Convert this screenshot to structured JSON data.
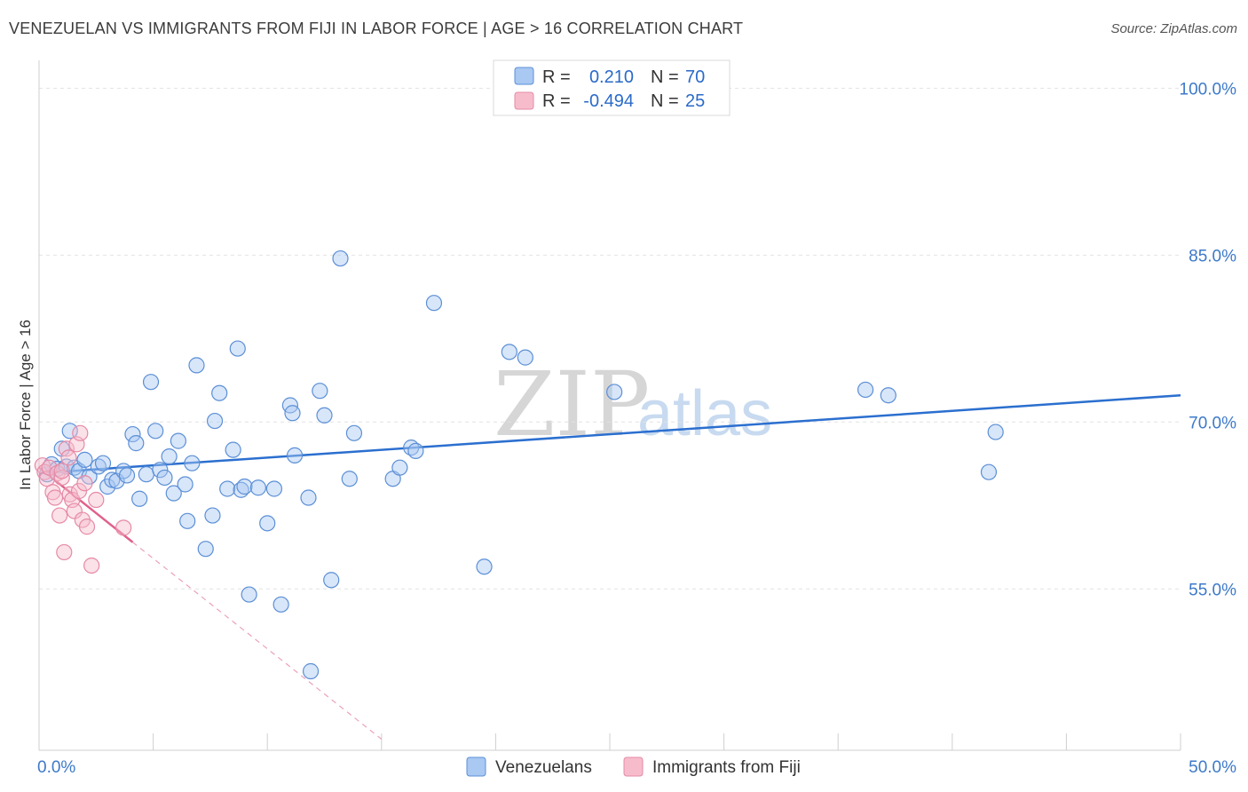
{
  "header": {
    "title": "VENEZUELAN VS IMMIGRANTS FROM FIJI IN LABOR FORCE | AGE > 16 CORRELATION CHART",
    "source": "Source: ZipAtlas.com"
  },
  "watermark": {
    "zip": "ZIP",
    "atlas": "atlas"
  },
  "legend": {
    "rows": [
      {
        "r_label": "R =",
        "r_value": "0.210",
        "n_label": "N =",
        "n_value": "70",
        "color": "#a9c8f2"
      },
      {
        "r_label": "R =",
        "r_value": "-0.494",
        "n_label": "N =",
        "n_value": "25",
        "color": "#f7bccc"
      }
    ]
  },
  "colors": {
    "blue_fill": "#a9c8f2",
    "blue_stroke": "#5b8fd6",
    "blue_line": "#2b6fcf",
    "pink_fill": "#f7bccc",
    "pink_stroke": "#e58aa6",
    "pink_line": "#e0608a"
  },
  "chart_data": {
    "type": "scatter",
    "title": "VENEZUELAN VS IMMIGRANTS FROM FIJI IN LABOR FORCE | AGE > 16 CORRELATION CHART",
    "xlabel": "",
    "ylabel": "In Labor Force | Age > 16",
    "xlim": [
      0,
      50
    ],
    "ylim": [
      40.5,
      102.5
    ],
    "x_tick_labels": [
      "0.0%",
      "50.0%"
    ],
    "y_ticks": [
      55,
      70,
      85,
      100
    ],
    "y_tick_labels": [
      "55.0%",
      "70.0%",
      "85.0%",
      "100.0%"
    ],
    "grid": true,
    "legend_position": "bottom",
    "series": [
      {
        "name": "Venezuelans",
        "color": "#a9c8f2",
        "trend": {
          "x": [
            0,
            50
          ],
          "y": [
            65.4,
            72.4
          ],
          "style": "solid"
        },
        "points": [
          [
            0.35,
            65.3
          ],
          [
            0.55,
            66.2
          ],
          [
            0.8,
            65.8
          ],
          [
            1.0,
            67.6
          ],
          [
            1.2,
            66.0
          ],
          [
            1.35,
            69.2
          ],
          [
            1.55,
            65.9
          ],
          [
            1.75,
            65.6
          ],
          [
            2.0,
            66.6
          ],
          [
            2.2,
            65.1
          ],
          [
            2.6,
            66.0
          ],
          [
            2.8,
            66.3
          ],
          [
            3.0,
            64.2
          ],
          [
            3.2,
            64.8
          ],
          [
            3.4,
            64.7
          ],
          [
            3.7,
            65.6
          ],
          [
            3.85,
            65.2
          ],
          [
            4.1,
            68.9
          ],
          [
            4.25,
            68.1
          ],
          [
            4.4,
            63.1
          ],
          [
            4.7,
            65.3
          ],
          [
            4.9,
            73.6
          ],
          [
            5.1,
            69.2
          ],
          [
            5.3,
            65.7
          ],
          [
            5.5,
            65.0
          ],
          [
            5.7,
            66.9
          ],
          [
            5.9,
            63.6
          ],
          [
            6.1,
            68.3
          ],
          [
            6.4,
            64.4
          ],
          [
            6.5,
            61.1
          ],
          [
            6.7,
            66.3
          ],
          [
            6.9,
            75.1
          ],
          [
            7.3,
            58.6
          ],
          [
            7.6,
            61.6
          ],
          [
            7.7,
            70.1
          ],
          [
            7.9,
            72.6
          ],
          [
            8.25,
            64.0
          ],
          [
            8.5,
            67.5
          ],
          [
            8.7,
            76.6
          ],
          [
            8.85,
            63.9
          ],
          [
            9.0,
            64.2
          ],
          [
            9.2,
            54.5
          ],
          [
            9.6,
            64.1
          ],
          [
            10.0,
            60.9
          ],
          [
            10.3,
            64.0
          ],
          [
            10.6,
            53.6
          ],
          [
            11.0,
            71.5
          ],
          [
            11.1,
            70.8
          ],
          [
            11.2,
            67.0
          ],
          [
            11.8,
            63.2
          ],
          [
            11.9,
            47.6
          ],
          [
            12.3,
            72.8
          ],
          [
            12.5,
            70.6
          ],
          [
            12.8,
            55.8
          ],
          [
            13.2,
            84.7
          ],
          [
            13.6,
            64.9
          ],
          [
            13.8,
            69.0
          ],
          [
            15.5,
            64.9
          ],
          [
            15.8,
            65.9
          ],
          [
            16.3,
            67.7
          ],
          [
            16.5,
            67.4
          ],
          [
            17.3,
            80.7
          ],
          [
            19.5,
            57.0
          ],
          [
            20.6,
            76.3
          ],
          [
            21.3,
            75.8
          ],
          [
            25.2,
            72.7
          ],
          [
            36.2,
            72.9
          ],
          [
            37.2,
            72.4
          ],
          [
            41.6,
            65.5
          ],
          [
            41.9,
            69.1
          ]
        ]
      },
      {
        "name": "Immigrants from Fiji",
        "color": "#f7bccc",
        "trend": {
          "x": [
            0,
            4.1
          ],
          "y": [
            65.9,
            59.2
          ],
          "style": "solid",
          "dashed_extension_x": [
            4.1,
            15.0
          ],
          "dashed_extension_y": [
            59.2,
            41.5
          ]
        },
        "points": [
          [
            0.15,
            66.1
          ],
          [
            0.25,
            65.5
          ],
          [
            0.35,
            64.9
          ],
          [
            0.45,
            65.9
          ],
          [
            0.6,
            63.7
          ],
          [
            0.7,
            63.2
          ],
          [
            0.8,
            65.4
          ],
          [
            0.9,
            61.6
          ],
          [
            1.0,
            65.0
          ],
          [
            1.1,
            58.3
          ],
          [
            1.2,
            67.6
          ],
          [
            1.35,
            63.5
          ],
          [
            1.45,
            63.0
          ],
          [
            1.55,
            62.0
          ],
          [
            1.65,
            68.0
          ],
          [
            1.75,
            63.8
          ],
          [
            1.8,
            69.0
          ],
          [
            1.9,
            61.2
          ],
          [
            2.1,
            60.6
          ],
          [
            2.3,
            57.1
          ],
          [
            2.5,
            63.0
          ],
          [
            3.7,
            60.5
          ],
          [
            1.3,
            66.8
          ],
          [
            2.0,
            64.5
          ],
          [
            1.0,
            65.6
          ]
        ]
      }
    ]
  }
}
